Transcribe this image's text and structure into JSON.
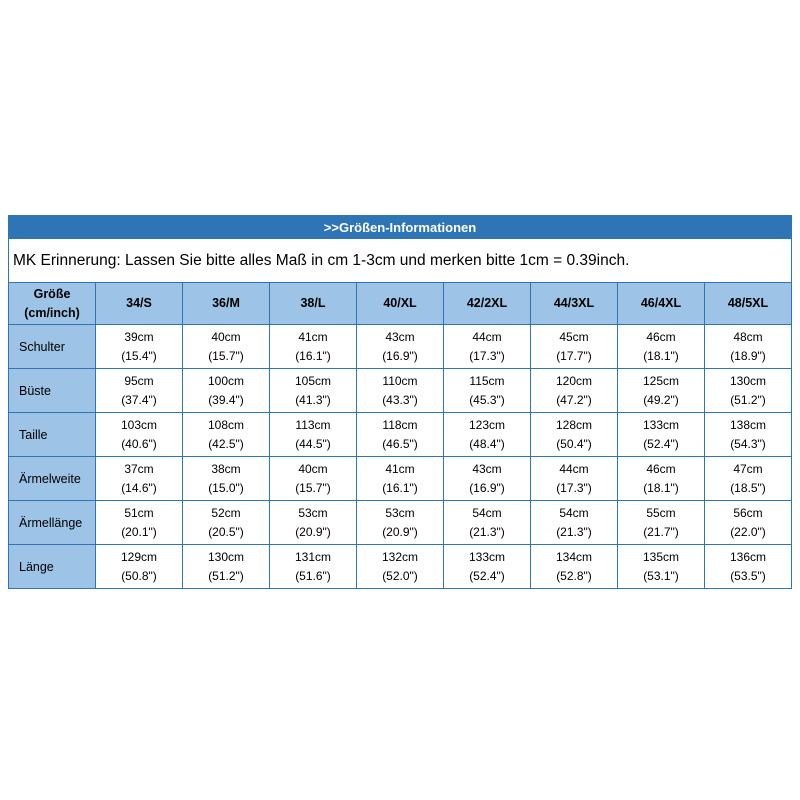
{
  "colors": {
    "title_bg": "#2e75b6",
    "title_text": "#ffffff",
    "header_bg": "#9dc3e6",
    "border": "#2e75b6",
    "cell_bg": "#ffffff",
    "text": "#000000",
    "page_bg": "#ffffff"
  },
  "chart_data": {
    "type": "table",
    "title": ">>Größen-Informationen",
    "note": "MK Erinnerung: Lassen Sie bitte alles Maß in cm 1-3cm und merken bitte 1cm = 0.39inch.",
    "corner": [
      "Größe",
      "(cm/inch)"
    ],
    "columns": [
      "34/S",
      "36/M",
      "38/L",
      "40/XL",
      "42/2XL",
      "44/3XL",
      "46/4XL",
      "48/5XL"
    ],
    "rows": [
      {
        "label": "Schulter",
        "cells": [
          [
            "39cm",
            "(15.4\")"
          ],
          [
            "40cm",
            "(15.7\")"
          ],
          [
            "41cm",
            "(16.1\")"
          ],
          [
            "43cm",
            "(16.9\")"
          ],
          [
            "44cm",
            "(17.3\")"
          ],
          [
            "45cm",
            "(17.7\")"
          ],
          [
            "46cm",
            "(18.1\")"
          ],
          [
            "48cm",
            "(18.9\")"
          ]
        ]
      },
      {
        "label": "Büste",
        "cells": [
          [
            "95cm",
            "(37.4\")"
          ],
          [
            "100cm",
            "(39.4\")"
          ],
          [
            "105cm",
            "(41.3\")"
          ],
          [
            "110cm",
            "(43.3\")"
          ],
          [
            "115cm",
            "(45.3\")"
          ],
          [
            "120cm",
            "(47.2\")"
          ],
          [
            "125cm",
            "(49.2\")"
          ],
          [
            "130cm",
            "(51.2\")"
          ]
        ]
      },
      {
        "label": "Taille",
        "cells": [
          [
            "103cm",
            "(40.6\")"
          ],
          [
            "108cm",
            "(42.5\")"
          ],
          [
            "113cm",
            "(44.5\")"
          ],
          [
            "118cm",
            "(46.5\")"
          ],
          [
            "123cm",
            "(48.4\")"
          ],
          [
            "128cm",
            "(50.4\")"
          ],
          [
            "133cm",
            "(52.4\")"
          ],
          [
            "138cm",
            "(54.3\")"
          ]
        ]
      },
      {
        "label": "Ärmelweite",
        "cells": [
          [
            "37cm",
            "(14.6\")"
          ],
          [
            "38cm",
            "(15.0\")"
          ],
          [
            "40cm",
            "(15.7\")"
          ],
          [
            "41cm",
            "(16.1\")"
          ],
          [
            "43cm",
            "(16.9\")"
          ],
          [
            "44cm",
            "(17.3\")"
          ],
          [
            "46cm",
            "(18.1\")"
          ],
          [
            "47cm",
            "(18.5\")"
          ]
        ]
      },
      {
        "label": "Ärmellänge",
        "cells": [
          [
            "51cm",
            "(20.1\")"
          ],
          [
            "52cm",
            "(20.5\")"
          ],
          [
            "53cm",
            "(20.9\")"
          ],
          [
            "53cm",
            "(20.9\")"
          ],
          [
            "54cm",
            "(21.3\")"
          ],
          [
            "54cm",
            "(21.3\")"
          ],
          [
            "55cm",
            "(21.7\")"
          ],
          [
            "56cm",
            "(22.0\")"
          ]
        ]
      },
      {
        "label": "Länge",
        "cells": [
          [
            "129cm",
            "(50.8\")"
          ],
          [
            "130cm",
            "(51.2\")"
          ],
          [
            "131cm",
            "(51.6\")"
          ],
          [
            "132cm",
            "(52.0\")"
          ],
          [
            "133cm",
            "(52.4\")"
          ],
          [
            "134cm",
            "(52.8\")"
          ],
          [
            "135cm",
            "(53.1\")"
          ],
          [
            "136cm",
            "(53.5\")"
          ]
        ]
      }
    ]
  }
}
